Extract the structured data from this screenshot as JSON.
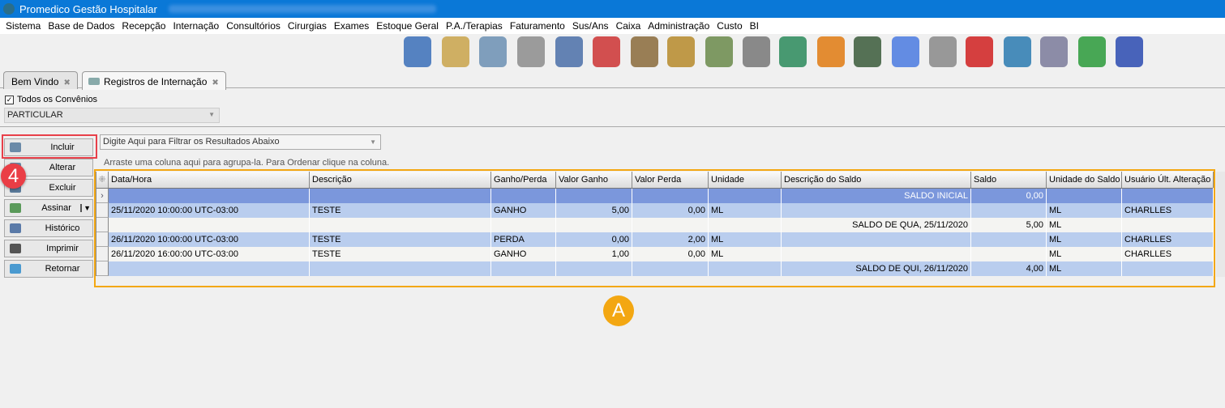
{
  "window": {
    "title": "Promedico Gestão Hospitalar"
  },
  "menu": [
    "Sistema",
    "Base de Dados",
    "Recepção",
    "Internação",
    "Consultórios",
    "Cirurgias",
    "Exames",
    "Estoque Geral",
    "P.A./Terapias",
    "Faturamento",
    "Sus/Ans",
    "Caixa",
    "Administração",
    "Custo",
    "BI"
  ],
  "toolbar_icons": [
    "user-refresh",
    "patients-folder",
    "doctor",
    "prescription",
    "bed",
    "ambulance",
    "supplies",
    "stock-up",
    "money-down",
    "safe",
    "finance-chart",
    "phone-book",
    "record-book",
    "chat",
    "form",
    "power",
    "e-money",
    "document-edit",
    "monitor-book",
    "contacts-book"
  ],
  "tabs": [
    {
      "label": "Bem Vindo"
    },
    {
      "label": "Registros de Internação"
    }
  ],
  "filters": {
    "all_insurances_label": "Todos os Convênios",
    "all_insurances_checked": true,
    "insurance_value": "PARTICULAR"
  },
  "actions": [
    {
      "label": "Incluir",
      "icon": "add"
    },
    {
      "label": "Alterar",
      "icon": "pencil"
    },
    {
      "label": "Excluir",
      "icon": "minus"
    },
    {
      "label": "Assinar",
      "icon": "sign"
    },
    {
      "label": "Histórico",
      "icon": "history"
    },
    {
      "label": "Imprimir",
      "icon": "printer"
    },
    {
      "label": "Retornar",
      "icon": "arrow-left"
    }
  ],
  "grid": {
    "filter_placeholder": "Digite Aqui para Filtrar os Resultados Abaixo",
    "group_hint": "Arraste uma coluna aqui para agrupa-la. Para Ordenar clique na coluna.",
    "columns": [
      "Data/Hora",
      "Descrição",
      "Ganho/Perda",
      "Valor Ganho",
      "Valor Perda",
      "Unidade",
      "Descrição do Saldo",
      "Saldo",
      "Unidade do Saldo",
      "Usuário Últ. Alteração"
    ],
    "rows": [
      [
        "",
        "",
        "",
        "",
        "",
        "",
        "SALDO INICIAL",
        "0,00",
        "",
        ""
      ],
      [
        "25/11/2020 10:00:00 UTC-03:00",
        "TESTE",
        "GANHO",
        "5,00",
        "0,00",
        "ML",
        "",
        "",
        "ML",
        "CHARLLES"
      ],
      [
        "",
        "",
        "",
        "",
        "",
        "",
        "SALDO DE QUA, 25/11/2020",
        "5,00",
        "ML",
        ""
      ],
      [
        "26/11/2020 10:00:00 UTC-03:00",
        "TESTE",
        "PERDA",
        "0,00",
        "2,00",
        "ML",
        "",
        "",
        "ML",
        "CHARLLES"
      ],
      [
        "26/11/2020 16:00:00 UTC-03:00",
        "TESTE",
        "GANHO",
        "1,00",
        "0,00",
        "ML",
        "",
        "",
        "ML",
        "CHARLLES"
      ],
      [
        "",
        "",
        "",
        "",
        "",
        "",
        "SALDO DE QUI, 26/11/2020",
        "4,00",
        "ML",
        ""
      ]
    ]
  },
  "annotations": {
    "step": "4",
    "marker": "A"
  },
  "colors": {
    "selected_row": "#7b97dc",
    "alt_row": "#b9cdee",
    "plain_row": "#f4f4f2",
    "highlight_red": "#e8404a",
    "highlight_orange": "#f3a712"
  }
}
